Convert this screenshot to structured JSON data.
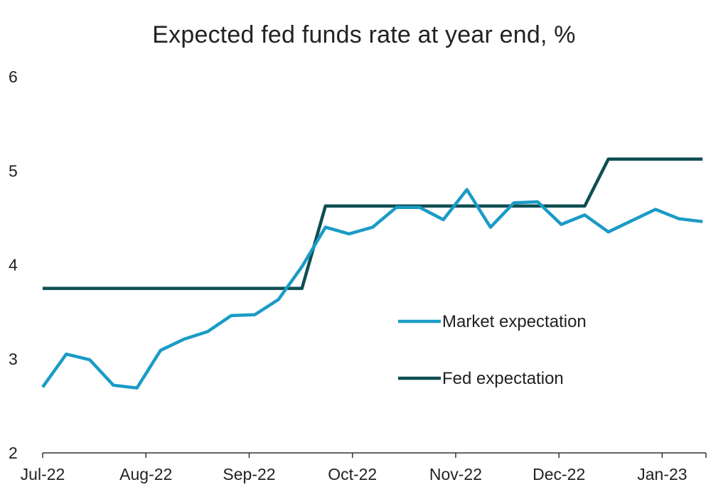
{
  "chart_data": {
    "type": "line",
    "title": "Expected fed funds rate at year end, %",
    "xlabel": "",
    "ylabel": "",
    "ylim": [
      2,
      6
    ],
    "y_ticks": [
      "2",
      "3",
      "4",
      "5",
      "6"
    ],
    "x_tick_labels": [
      "Jul-22",
      "Aug-22",
      "Sep-22",
      "Oct-22",
      "Nov-22",
      "Dec-22",
      "Jan-23"
    ],
    "grid": false,
    "legend": "right-center",
    "colors": {
      "market": "#1a9bc6",
      "fed": "#0e4e52",
      "axis": "#333333"
    },
    "series": [
      {
        "name": "Market expectation",
        "points": [
          [
            "2022-07-01",
            2.7
          ],
          [
            "2022-07-08",
            3.05
          ],
          [
            "2022-07-15",
            2.99
          ],
          [
            "2022-07-22",
            2.72
          ],
          [
            "2022-07-29",
            2.69
          ],
          [
            "2022-08-05",
            3.09
          ],
          [
            "2022-08-12",
            3.21
          ],
          [
            "2022-08-19",
            3.29
          ],
          [
            "2022-08-26",
            3.46
          ],
          [
            "2022-09-02",
            3.47
          ],
          [
            "2022-09-09",
            3.63
          ],
          [
            "2022-09-16",
            3.98
          ],
          [
            "2022-09-23",
            4.4
          ],
          [
            "2022-09-30",
            4.33
          ],
          [
            "2022-10-07",
            4.4
          ],
          [
            "2022-10-14",
            4.61
          ],
          [
            "2022-10-21",
            4.61
          ],
          [
            "2022-10-28",
            4.48
          ],
          [
            "2022-11-04",
            4.8
          ],
          [
            "2022-11-11",
            4.4
          ],
          [
            "2022-11-18",
            4.66
          ],
          [
            "2022-11-25",
            4.67
          ],
          [
            "2022-12-02",
            4.43
          ],
          [
            "2022-12-09",
            4.53
          ],
          [
            "2022-12-16",
            4.35
          ],
          [
            "2022-12-23",
            4.47
          ],
          [
            "2022-12-30",
            4.59
          ],
          [
            "2023-01-06",
            4.49
          ],
          [
            "2023-01-13",
            4.46
          ]
        ]
      },
      {
        "name": "Fed expectation",
        "points": [
          [
            "2022-07-01",
            3.75
          ],
          [
            "2022-09-16",
            3.75
          ],
          [
            "2022-09-23",
            4.625
          ],
          [
            "2022-12-09",
            4.625
          ],
          [
            "2022-12-16",
            5.125
          ],
          [
            "2023-01-13",
            5.125
          ]
        ]
      }
    ]
  }
}
